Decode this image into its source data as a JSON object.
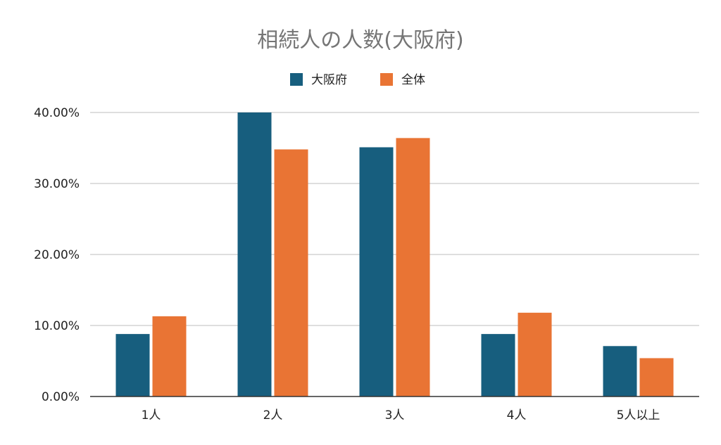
{
  "chart_data": {
    "type": "bar",
    "title": "相続人の人数(大阪府)",
    "xlabel": "",
    "ylabel": "",
    "categories": [
      "1人",
      "2人",
      "3人",
      "4人",
      "5人以上"
    ],
    "series": [
      {
        "name": "大阪府",
        "color": "#175e7e",
        "values": [
          8.8,
          40.0,
          35.1,
          8.8,
          7.1
        ]
      },
      {
        "name": "全体",
        "color": "#e97434",
        "values": [
          11.3,
          34.8,
          36.4,
          11.8,
          5.4
        ]
      }
    ],
    "ylim": [
      0,
      40
    ],
    "yticks": [
      0,
      10,
      20,
      30,
      40
    ],
    "ytick_labels": [
      "0.00%",
      "10.00%",
      "20.00%",
      "30.00%",
      "40.00%"
    ],
    "grid": true,
    "legend_position": "top-center"
  }
}
